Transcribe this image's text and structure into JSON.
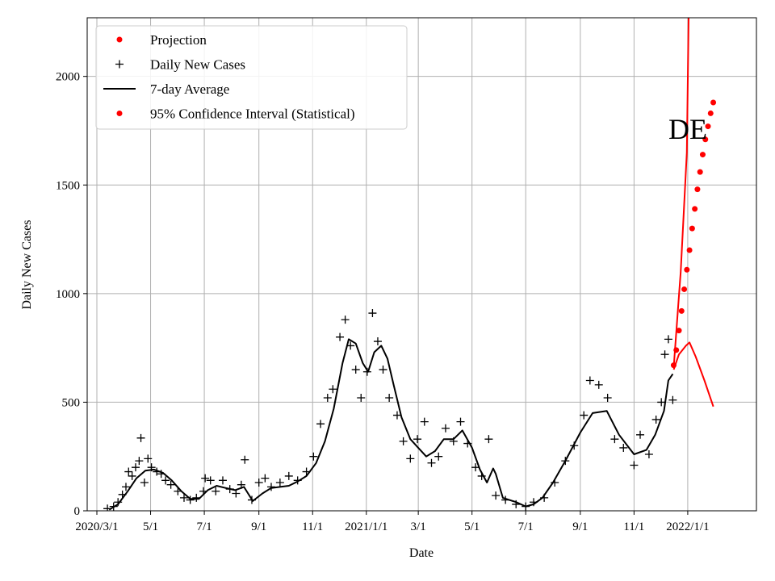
{
  "chart_data": {
    "type": "line",
    "xlabel": "Date",
    "ylabel": "Daily New Cases",
    "annotation": "DE",
    "xlim": [
      "2020-02-19",
      "2022-03-20"
    ],
    "ylim": [
      0,
      2270
    ],
    "grid": true,
    "legend_position": "top-left",
    "x_ticks": [
      {
        "date": "2020-03-01",
        "label": "2020/3/1"
      },
      {
        "date": "2020-05-01",
        "label": "5/1"
      },
      {
        "date": "2020-07-01",
        "label": "7/1"
      },
      {
        "date": "2020-09-01",
        "label": "9/1"
      },
      {
        "date": "2020-11-01",
        "label": "11/1"
      },
      {
        "date": "2021-01-01",
        "label": "2021/1/1"
      },
      {
        "date": "2021-03-01",
        "label": "3/1"
      },
      {
        "date": "2021-05-01",
        "label": "5/1"
      },
      {
        "date": "2021-07-01",
        "label": "7/1"
      },
      {
        "date": "2021-09-01",
        "label": "9/1"
      },
      {
        "date": "2021-11-01",
        "label": "11/1"
      },
      {
        "date": "2022-01-01",
        "label": "2022/1/1"
      }
    ],
    "y_ticks": [
      {
        "value": 0,
        "label": "0"
      },
      {
        "value": 500,
        "label": "500"
      },
      {
        "value": 1000,
        "label": "1000"
      },
      {
        "value": 1500,
        "label": "1500"
      },
      {
        "value": 2000,
        "label": "2000"
      }
    ],
    "legend": [
      {
        "label": "Projection",
        "marker": "dot",
        "color": "#ff0000"
      },
      {
        "label": "Daily New Cases",
        "marker": "plus",
        "color": "#000000"
      },
      {
        "label": "7-day Average",
        "marker": "line",
        "color": "#000000"
      },
      {
        "label": "95% Confidence Interval (Statistical)",
        "marker": "dot",
        "color": "#ff0000"
      }
    ],
    "seven_day_average": {
      "color": "#000000",
      "points": [
        [
          "2020-03-15",
          5
        ],
        [
          "2020-03-25",
          30
        ],
        [
          "2020-04-05",
          90
        ],
        [
          "2020-04-15",
          150
        ],
        [
          "2020-04-25",
          185
        ],
        [
          "2020-05-05",
          190
        ],
        [
          "2020-05-15",
          175
        ],
        [
          "2020-05-25",
          140
        ],
        [
          "2020-06-05",
          90
        ],
        [
          "2020-06-15",
          55
        ],
        [
          "2020-06-25",
          55
        ],
        [
          "2020-07-05",
          95
        ],
        [
          "2020-07-15",
          115
        ],
        [
          "2020-07-25",
          105
        ],
        [
          "2020-08-05",
          95
        ],
        [
          "2020-08-15",
          110
        ],
        [
          "2020-08-25",
          45
        ],
        [
          "2020-09-05",
          80
        ],
        [
          "2020-09-15",
          105
        ],
        [
          "2020-09-25",
          110
        ],
        [
          "2020-10-05",
          115
        ],
        [
          "2020-10-15",
          135
        ],
        [
          "2020-10-25",
          160
        ],
        [
          "2020-11-05",
          220
        ],
        [
          "2020-11-15",
          320
        ],
        [
          "2020-11-25",
          470
        ],
        [
          "2020-12-05",
          680
        ],
        [
          "2020-12-12",
          790
        ],
        [
          "2020-12-20",
          770
        ],
        [
          "2020-12-28",
          680
        ],
        [
          "2021-01-03",
          640
        ],
        [
          "2021-01-10",
          730
        ],
        [
          "2021-01-18",
          760
        ],
        [
          "2021-01-25",
          700
        ],
        [
          "2021-02-01",
          580
        ],
        [
          "2021-02-10",
          430
        ],
        [
          "2021-02-20",
          330
        ],
        [
          "2021-03-01",
          290
        ],
        [
          "2021-03-10",
          250
        ],
        [
          "2021-03-20",
          275
        ],
        [
          "2021-03-30",
          330
        ],
        [
          "2021-04-10",
          330
        ],
        [
          "2021-04-20",
          370
        ],
        [
          "2021-05-01",
          290
        ],
        [
          "2021-05-10",
          190
        ],
        [
          "2021-05-18",
          130
        ],
        [
          "2021-05-25",
          195
        ],
        [
          "2021-05-28",
          170
        ],
        [
          "2021-06-05",
          60
        ],
        [
          "2021-06-20",
          40
        ],
        [
          "2021-07-01",
          20
        ],
        [
          "2021-07-10",
          30
        ],
        [
          "2021-07-20",
          60
        ],
        [
          "2021-08-01",
          130
        ],
        [
          "2021-08-15",
          230
        ],
        [
          "2021-09-01",
          360
        ],
        [
          "2021-09-15",
          450
        ],
        [
          "2021-10-01",
          460
        ],
        [
          "2021-10-15",
          350
        ],
        [
          "2021-11-01",
          260
        ],
        [
          "2021-11-15",
          280
        ],
        [
          "2021-11-25",
          350
        ],
        [
          "2021-12-05",
          460
        ],
        [
          "2021-12-10",
          600
        ],
        [
          "2021-12-15",
          630
        ]
      ]
    },
    "daily_new_cases": {
      "marker": "plus",
      "color": "#000000",
      "points": [
        [
          "2020-03-13",
          10
        ],
        [
          "2020-03-20",
          20
        ],
        [
          "2020-03-25",
          40
        ],
        [
          "2020-03-30",
          75
        ],
        [
          "2020-04-03",
          110
        ],
        [
          "2020-04-06",
          180
        ],
        [
          "2020-04-10",
          160
        ],
        [
          "2020-04-14",
          200
        ],
        [
          "2020-04-18",
          230
        ],
        [
          "2020-04-20",
          335
        ],
        [
          "2020-04-24",
          130
        ],
        [
          "2020-04-28",
          240
        ],
        [
          "2020-05-02",
          200
        ],
        [
          "2020-05-08",
          180
        ],
        [
          "2020-05-13",
          170
        ],
        [
          "2020-05-18",
          140
        ],
        [
          "2020-05-24",
          120
        ],
        [
          "2020-06-01",
          90
        ],
        [
          "2020-06-08",
          60
        ],
        [
          "2020-06-15",
          50
        ],
        [
          "2020-06-22",
          60
        ],
        [
          "2020-06-30",
          90
        ],
        [
          "2020-07-02",
          150
        ],
        [
          "2020-07-08",
          140
        ],
        [
          "2020-07-14",
          90
        ],
        [
          "2020-07-22",
          140
        ],
        [
          "2020-07-30",
          100
        ],
        [
          "2020-08-06",
          80
        ],
        [
          "2020-08-12",
          120
        ],
        [
          "2020-08-16",
          235
        ],
        [
          "2020-08-24",
          50
        ],
        [
          "2020-09-01",
          130
        ],
        [
          "2020-09-08",
          150
        ],
        [
          "2020-09-15",
          110
        ],
        [
          "2020-09-25",
          130
        ],
        [
          "2020-10-05",
          160
        ],
        [
          "2020-10-15",
          140
        ],
        [
          "2020-10-25",
          180
        ],
        [
          "2020-11-02",
          250
        ],
        [
          "2020-11-10",
          400
        ],
        [
          "2020-11-18",
          520
        ],
        [
          "2020-11-24",
          560
        ],
        [
          "2020-12-02",
          800
        ],
        [
          "2020-12-08",
          880
        ],
        [
          "2020-12-14",
          760
        ],
        [
          "2020-12-20",
          650
        ],
        [
          "2020-12-26",
          520
        ],
        [
          "2021-01-02",
          640
        ],
        [
          "2021-01-08",
          910
        ],
        [
          "2021-01-14",
          780
        ],
        [
          "2021-01-20",
          650
        ],
        [
          "2021-01-27",
          520
        ],
        [
          "2021-02-05",
          440
        ],
        [
          "2021-02-12",
          320
        ],
        [
          "2021-02-20",
          240
        ],
        [
          "2021-02-28",
          330
        ],
        [
          "2021-03-08",
          410
        ],
        [
          "2021-03-16",
          220
        ],
        [
          "2021-03-24",
          250
        ],
        [
          "2021-04-01",
          380
        ],
        [
          "2021-04-10",
          320
        ],
        [
          "2021-04-18",
          410
        ],
        [
          "2021-04-26",
          310
        ],
        [
          "2021-05-05",
          200
        ],
        [
          "2021-05-12",
          160
        ],
        [
          "2021-05-20",
          330
        ],
        [
          "2021-05-28",
          70
        ],
        [
          "2021-06-08",
          50
        ],
        [
          "2021-06-20",
          30
        ],
        [
          "2021-07-01",
          20
        ],
        [
          "2021-07-10",
          40
        ],
        [
          "2021-07-22",
          60
        ],
        [
          "2021-08-03",
          130
        ],
        [
          "2021-08-15",
          230
        ],
        [
          "2021-08-25",
          300
        ],
        [
          "2021-09-05",
          440
        ],
        [
          "2021-09-12",
          600
        ],
        [
          "2021-09-22",
          580
        ],
        [
          "2021-10-02",
          520
        ],
        [
          "2021-10-10",
          330
        ],
        [
          "2021-10-20",
          290
        ],
        [
          "2021-11-01",
          210
        ],
        [
          "2021-11-08",
          350
        ],
        [
          "2021-11-18",
          260
        ],
        [
          "2021-11-26",
          420
        ],
        [
          "2021-12-02",
          500
        ],
        [
          "2021-12-06",
          720
        ],
        [
          "2021-12-10",
          790
        ],
        [
          "2021-12-15",
          510
        ]
      ]
    },
    "projection": {
      "marker": "dot",
      "color": "#ff0000",
      "points": [
        [
          "2021-12-16",
          670
        ],
        [
          "2021-12-19",
          740
        ],
        [
          "2021-12-22",
          830
        ],
        [
          "2021-12-25",
          920
        ],
        [
          "2021-12-28",
          1020
        ],
        [
          "2021-12-31",
          1110
        ],
        [
          "2022-01-03",
          1200
        ],
        [
          "2022-01-06",
          1300
        ],
        [
          "2022-01-09",
          1390
        ],
        [
          "2022-01-12",
          1480
        ],
        [
          "2022-01-15",
          1560
        ],
        [
          "2022-01-18",
          1640
        ],
        [
          "2022-01-21",
          1710
        ],
        [
          "2022-01-24",
          1770
        ],
        [
          "2022-01-27",
          1830
        ],
        [
          "2022-01-30",
          1880
        ]
      ]
    },
    "confidence_interval_upper": {
      "color": "#ff0000",
      "points": [
        [
          "2021-12-16",
          660
        ],
        [
          "2021-12-24",
          1100
        ],
        [
          "2021-12-31",
          1650
        ],
        [
          "2022-01-02",
          2270
        ]
      ]
    },
    "confidence_interval_lower": {
      "color": "#ff0000",
      "points": [
        [
          "2021-12-16",
          650
        ],
        [
          "2021-12-22",
          720
        ],
        [
          "2021-12-30",
          760
        ],
        [
          "2022-01-03",
          775
        ],
        [
          "2022-01-10",
          710
        ],
        [
          "2022-01-20",
          600
        ],
        [
          "2022-01-30",
          480
        ]
      ]
    }
  }
}
